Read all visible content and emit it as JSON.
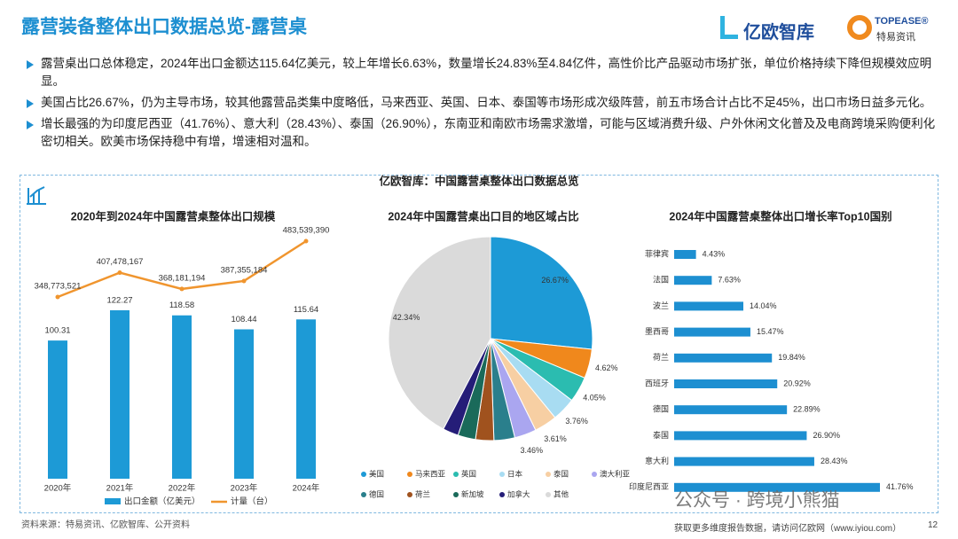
{
  "header": {
    "title": "露营装备整体出口数据总览-露营桌",
    "logo_1": "亿欧智库",
    "logo_2": "TOPEASE®",
    "logo_2_sub": "特易资讯"
  },
  "bullets": [
    "露营桌出口总体稳定，2024年出口金额达115.64亿美元，较上年增长6.63%，数量增长24.83%至4.84亿件，高性价比产品驱动市场扩张，单位价格持续下降但规模效应明显。",
    "美国占比26.67%，仍为主导市场，较其他露营品类集中度略低，马来西亚、英国、日本、泰国等市场形成次级阵营，前五市场合计占比不足45%，出口市场日益多元化。",
    "增长最强的为印度尼西亚（41.76%）、意大利（28.43%）、泰国（26.90%），东南亚和南欧市场需求激增，可能与区域消费升级、户外休闲文化普及及电商跨境采购便利化密切相关。欧美市场保持稳中有增，增速相对温和。"
  ],
  "panel_title": "亿欧智库：中国露营桌整体出口数据总览",
  "watermark": "公众号 · 跨境小熊猫",
  "footer": {
    "source": "资料来源：特易资讯、亿欧智库、公开资料",
    "note": "获取更多维度报告数据，请访问亿欧网（www.iyiou.com）",
    "page": "12"
  },
  "chart_data": [
    {
      "type": "bar-line",
      "title": "2020年到2024年中国露营桌整体出口规模",
      "categories": [
        "2020年",
        "2021年",
        "2022年",
        "2023年",
        "2024年"
      ],
      "series": [
        {
          "name": "出口金额（亿美元）",
          "type": "bar",
          "color": "#1d9ad6",
          "values": [
            100.31,
            122.27,
            118.58,
            108.44,
            115.64
          ]
        },
        {
          "name": "计量（台）",
          "type": "line",
          "axis": "y2",
          "color": "#f0952e",
          "values": [
            348773521,
            407478167,
            368181194,
            387355184,
            483539390
          ],
          "value_labels": [
            "348,773,521",
            "407,478,167",
            "368,181,194",
            "387,355,184",
            "483,539,390"
          ]
        }
      ]
    },
    {
      "type": "pie",
      "title": "2024年中国露营桌出口目的地区域占比",
      "categories": [
        "美国",
        "马来西亚",
        "英国",
        "日本",
        "泰国",
        "澳大利亚",
        "德国",
        "荷兰",
        "新加坡",
        "加拿大",
        "其他"
      ],
      "values": [
        26.67,
        4.62,
        4.05,
        3.76,
        3.61,
        3.46,
        3.3,
        2.9,
        2.8,
        2.49,
        42.34
      ],
      "value_labels": [
        "26.67%",
        "4.62%",
        "4.05%",
        "3.76%",
        "3.61%",
        "3.46%",
        null,
        null,
        null,
        null,
        "42.34%"
      ],
      "colors": [
        "#1d9ad6",
        "#f0881c",
        "#2bbcb0",
        "#a8dcf2",
        "#f7cfa3",
        "#aaa6f0",
        "#2a7f8c",
        "#a0521e",
        "#1a6a5a",
        "#251d78",
        "#dadada"
      ]
    },
    {
      "type": "hbar",
      "title": "2024年中国露营桌整体出口增长率Top10国别",
      "categories": [
        "菲律宾",
        "法国",
        "波兰",
        "墨西哥",
        "荷兰",
        "西班牙",
        "德国",
        "泰国",
        "意大利",
        "印度尼西亚"
      ],
      "values": [
        4.43,
        7.63,
        14.04,
        15.47,
        19.84,
        20.92,
        22.89,
        26.9,
        28.43,
        41.76
      ],
      "value_labels": [
        "4.43%",
        "7.63%",
        "14.04%",
        "15.47%",
        "19.84%",
        "20.92%",
        "22.89%",
        "26.90%",
        "28.43%",
        "41.76%"
      ],
      "color": "#1d8fd1"
    }
  ]
}
